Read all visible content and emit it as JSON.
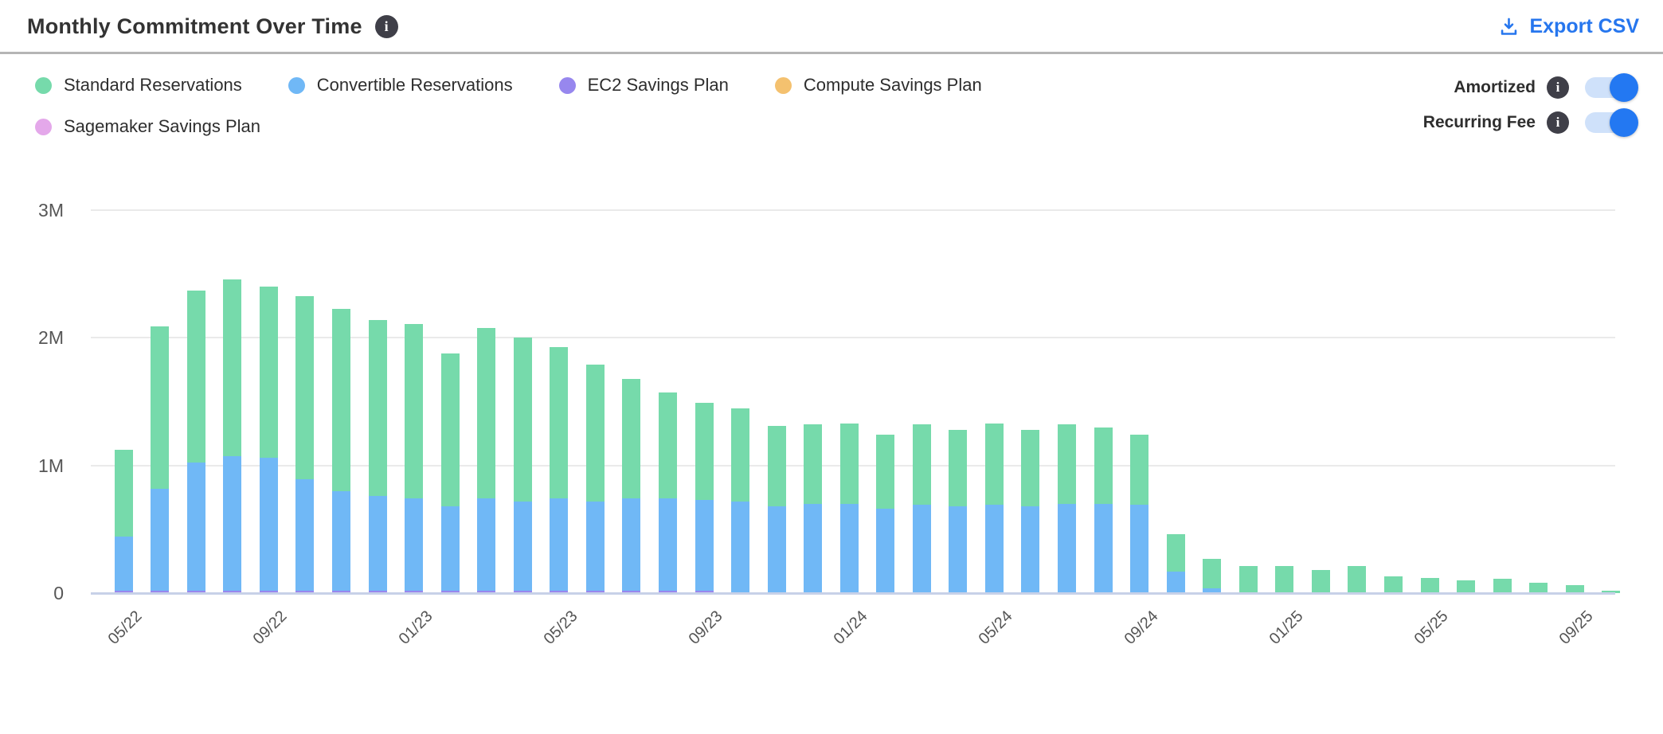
{
  "header": {
    "title": "Monthly Commitment Over Time",
    "info_icon": "info-icon",
    "export_label": "Export CSV",
    "export_icon": "download-icon"
  },
  "toggles": [
    {
      "label": "Amortized",
      "state": "on"
    },
    {
      "label": "Recurring Fee",
      "state": "on"
    }
  ],
  "colors": {
    "accent_blue": "#2676ee",
    "toggle_track": "#cfe1fa",
    "toggle_knob": "#2378f2",
    "info_badge_bg": "#3f3f48",
    "separator": "#b5b5b5",
    "gridline": "#eaeaea",
    "zero_line": "#c7d1e8",
    "axis_text": "#565656"
  },
  "chart_data": {
    "type": "bar",
    "stacked": true,
    "grid": "horizontal",
    "legend_position": "top-left",
    "unit": "millions",
    "ylim": [
      0,
      3
    ],
    "y_ticks": [
      {
        "value": 0,
        "label": "0"
      },
      {
        "value": 1,
        "label": "1M"
      },
      {
        "value": 2,
        "label": "2M"
      },
      {
        "value": 3,
        "label": "3M"
      }
    ],
    "x_tick_every": 4,
    "x": [
      "05/22",
      "06/22",
      "07/22",
      "08/22",
      "09/22",
      "10/22",
      "11/22",
      "12/22",
      "01/23",
      "02/23",
      "03/23",
      "04/23",
      "05/23",
      "06/23",
      "07/23",
      "08/23",
      "09/23",
      "10/23",
      "11/23",
      "12/23",
      "01/24",
      "02/24",
      "03/24",
      "04/24",
      "05/24",
      "06/24",
      "07/24",
      "08/24",
      "09/24",
      "10/24",
      "11/24",
      "12/24",
      "01/25",
      "02/25",
      "03/25",
      "04/25",
      "05/25",
      "06/25",
      "07/25",
      "08/25",
      "09/25",
      "10/25"
    ],
    "visible_x_labels": [
      "05/22",
      "09/22",
      "01/23",
      "05/23",
      "09/23",
      "01/24",
      "05/24",
      "09/24",
      "01/25",
      "05/25",
      "09/25"
    ],
    "stack_order_bottom_to_top": [
      "EC2 Savings Plan",
      "Sagemaker Savings Plan",
      "Compute Savings Plan",
      "Convertible Reservations",
      "Standard Reservations"
    ],
    "series": [
      {
        "name": "Standard Reservations",
        "color": "#76daab",
        "values": [
          0.68,
          1.27,
          1.35,
          1.39,
          1.34,
          1.44,
          1.43,
          1.38,
          1.37,
          1.2,
          1.34,
          1.28,
          1.19,
          1.07,
          0.94,
          0.83,
          0.76,
          0.73,
          0.63,
          0.62,
          0.63,
          0.58,
          0.63,
          0.6,
          0.64,
          0.6,
          0.62,
          0.6,
          0.55,
          0.29,
          0.23,
          0.21,
          0.21,
          0.18,
          0.21,
          0.13,
          0.12,
          0.1,
          0.11,
          0.08,
          0.06,
          0.02
        ]
      },
      {
        "name": "Convertible Reservations",
        "color": "#70b8f6",
        "values": [
          0.42,
          0.8,
          1.0,
          1.05,
          1.04,
          0.87,
          0.78,
          0.74,
          0.72,
          0.66,
          0.72,
          0.7,
          0.72,
          0.7,
          0.72,
          0.72,
          0.71,
          0.72,
          0.68,
          0.7,
          0.7,
          0.66,
          0.69,
          0.68,
          0.69,
          0.68,
          0.7,
          0.7,
          0.69,
          0.17,
          0.04,
          0,
          0,
          0,
          0,
          0,
          0,
          0,
          0,
          0,
          0,
          0
        ]
      },
      {
        "name": "EC2 Savings Plan",
        "color": "#9787ee",
        "values": [
          0.02,
          0.02,
          0.02,
          0.02,
          0.02,
          0.02,
          0.02,
          0.02,
          0.02,
          0.02,
          0.02,
          0.02,
          0.02,
          0.02,
          0.02,
          0.02,
          0.02,
          0,
          0,
          0,
          0,
          0,
          0,
          0,
          0,
          0,
          0,
          0,
          0,
          0,
          0,
          0,
          0,
          0,
          0,
          0,
          0,
          0,
          0,
          0,
          0,
          0
        ]
      },
      {
        "name": "Compute Savings Plan",
        "color": "#f4c16f",
        "values": [
          0,
          0,
          0,
          0,
          0,
          0,
          0,
          0,
          0,
          0,
          0,
          0,
          0,
          0,
          0,
          0,
          0,
          0,
          0,
          0,
          0,
          0,
          0,
          0,
          0,
          0,
          0,
          0,
          0,
          0,
          0,
          0,
          0,
          0,
          0,
          0,
          0,
          0,
          0,
          0,
          0,
          0
        ]
      },
      {
        "name": "Sagemaker Savings Plan",
        "color": "#e4a8ea",
        "values": [
          0,
          0,
          0,
          0,
          0,
          0,
          0,
          0,
          0,
          0,
          0,
          0,
          0,
          0,
          0,
          0,
          0,
          0,
          0,
          0,
          0,
          0,
          0,
          0,
          0,
          0,
          0,
          0,
          0,
          0,
          0,
          0,
          0,
          0,
          0,
          0,
          0,
          0,
          0,
          0,
          0,
          0
        ]
      }
    ]
  }
}
